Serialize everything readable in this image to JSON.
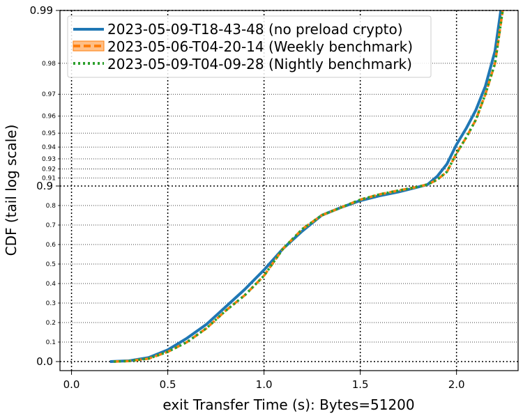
{
  "chart_data": {
    "type": "line",
    "title": "",
    "xlabel": "exit Transfer Time (s): Bytes=51200",
    "ylabel": "CDF (tail log scale)",
    "xlim": [
      -0.06,
      2.32
    ],
    "y_scale": "tail-log",
    "x_ticks": [
      {
        "value": 0.0,
        "label": "0.0"
      },
      {
        "value": 0.5,
        "label": "0.5"
      },
      {
        "value": 1.0,
        "label": "1.0"
      },
      {
        "value": 1.5,
        "label": "1.5"
      },
      {
        "value": 2.0,
        "label": "2.0"
      }
    ],
    "y_ticks_major": [
      {
        "value": 0.0,
        "label": "0.0"
      },
      {
        "value": 0.9,
        "label": "0.9"
      },
      {
        "value": 0.99,
        "label": "0.99"
      }
    ],
    "y_ticks_minor": [
      {
        "value": 0.1,
        "label": "0.1"
      },
      {
        "value": 0.2,
        "label": "0.2"
      },
      {
        "value": 0.3,
        "label": "0.3"
      },
      {
        "value": 0.4,
        "label": "0.4"
      },
      {
        "value": 0.5,
        "label": "0.5"
      },
      {
        "value": 0.6,
        "label": "0.6"
      },
      {
        "value": 0.7,
        "label": "0.7"
      },
      {
        "value": 0.8,
        "label": "0.8"
      },
      {
        "value": 0.91,
        "label": "0.91"
      },
      {
        "value": 0.92,
        "label": "0.92"
      },
      {
        "value": 0.93,
        "label": "0.93"
      },
      {
        "value": 0.94,
        "label": "0.94"
      },
      {
        "value": 0.95,
        "label": "0.95"
      },
      {
        "value": 0.96,
        "label": "0.96"
      },
      {
        "value": 0.97,
        "label": "0.97"
      },
      {
        "value": 0.98,
        "label": "0.98"
      }
    ],
    "grid": true,
    "legend_position": "top-left",
    "series": [
      {
        "name": "2023-05-09-T18-43-48 (no preload crypto)",
        "color": "#1f77b4",
        "style": "solid",
        "x": [
          0.2,
          0.3,
          0.4,
          0.5,
          0.6,
          0.7,
          0.8,
          0.9,
          1.0,
          1.1,
          1.2,
          1.3,
          1.4,
          1.5,
          1.6,
          1.7,
          1.8,
          1.85,
          1.9,
          1.95,
          2.0,
          2.05,
          2.1,
          2.15,
          2.2,
          2.23
        ],
        "y": [
          0.0,
          0.004,
          0.02,
          0.06,
          0.12,
          0.19,
          0.28,
          0.37,
          0.47,
          0.58,
          0.67,
          0.75,
          0.79,
          0.825,
          0.85,
          0.87,
          0.895,
          0.902,
          0.912,
          0.925,
          0.942,
          0.953,
          0.963,
          0.973,
          0.983,
          0.99
        ]
      },
      {
        "name": "2023-05-06-T04-20-14 (Weekly benchmark)",
        "color": "#ff7f0e",
        "style": "dashed",
        "x": [
          0.22,
          0.3,
          0.4,
          0.5,
          0.6,
          0.7,
          0.8,
          0.9,
          1.0,
          1.1,
          1.2,
          1.3,
          1.4,
          1.5,
          1.6,
          1.7,
          1.8,
          1.85,
          1.9,
          1.95,
          2.0,
          2.05,
          2.1,
          2.15,
          2.2,
          2.24
        ],
        "y": [
          0.0,
          0.003,
          0.015,
          0.05,
          0.1,
          0.17,
          0.26,
          0.34,
          0.44,
          0.58,
          0.68,
          0.75,
          0.79,
          0.83,
          0.857,
          0.877,
          0.896,
          0.902,
          0.908,
          0.917,
          0.935,
          0.947,
          0.958,
          0.97,
          0.98,
          0.99
        ]
      },
      {
        "name": "2023-05-09-T04-09-28 (Nightly benchmark)",
        "color": "#2ca02c",
        "style": "dotted",
        "x": [
          0.22,
          0.3,
          0.4,
          0.5,
          0.6,
          0.7,
          0.8,
          0.9,
          1.0,
          1.1,
          1.2,
          1.3,
          1.4,
          1.5,
          1.6,
          1.7,
          1.8,
          1.85,
          1.9,
          1.95,
          2.0,
          2.05,
          2.1,
          2.15,
          2.2,
          2.24
        ],
        "y": [
          0.0,
          0.003,
          0.015,
          0.05,
          0.1,
          0.17,
          0.26,
          0.34,
          0.44,
          0.58,
          0.68,
          0.75,
          0.79,
          0.83,
          0.857,
          0.877,
          0.896,
          0.902,
          0.908,
          0.917,
          0.935,
          0.947,
          0.958,
          0.97,
          0.98,
          0.99
        ]
      }
    ]
  }
}
